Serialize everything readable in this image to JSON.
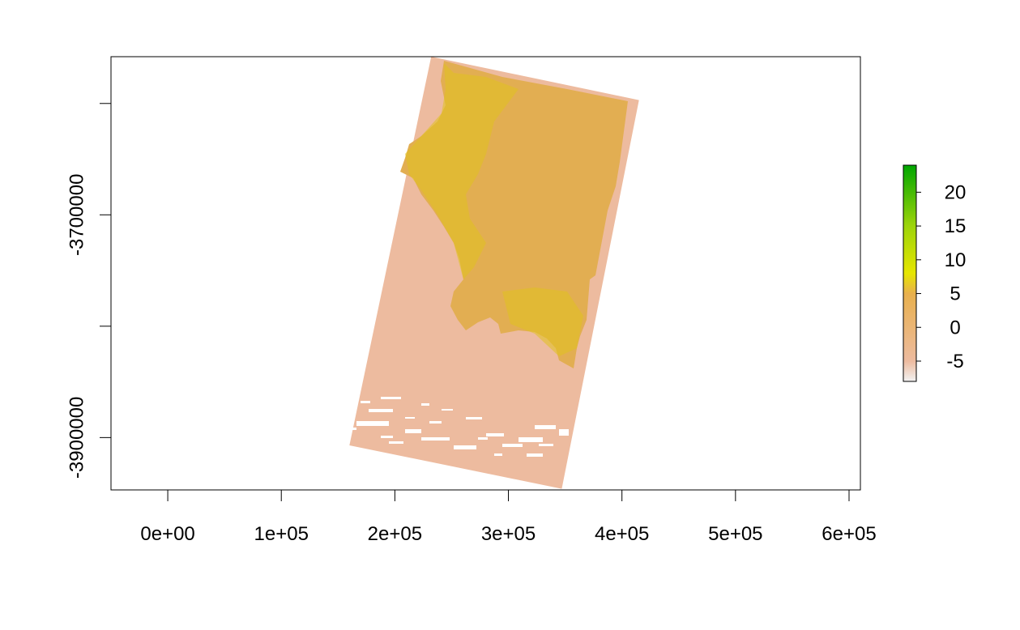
{
  "chart_data": {
    "type": "heatmap",
    "title": "",
    "xlabel": "",
    "ylabel": "",
    "xlim": [
      -50000,
      610000
    ],
    "ylim": [
      -3947000,
      -3558000
    ],
    "x_ticks": [
      {
        "value": 0,
        "label": "0e+00"
      },
      {
        "value": 100000,
        "label": "1e+05"
      },
      {
        "value": 200000,
        "label": "2e+05"
      },
      {
        "value": 300000,
        "label": "3e+05"
      },
      {
        "value": 400000,
        "label": "4e+05"
      },
      {
        "value": 500000,
        "label": "5e+05"
      },
      {
        "value": 600000,
        "label": "6e+05"
      }
    ],
    "y_ticks": [
      {
        "value": -3600000,
        "label": ""
      },
      {
        "value": -3700000,
        "label": "-3700000"
      },
      {
        "value": -3800000,
        "label": ""
      },
      {
        "value": -3900000,
        "label": "-3900000"
      }
    ],
    "legend": {
      "placement": "right",
      "range": [
        -8,
        24
      ],
      "ticks": [
        {
          "value": -5,
          "label": "-5"
        },
        {
          "value": 0,
          "label": "0"
        },
        {
          "value": 5,
          "label": "5"
        },
        {
          "value": 10,
          "label": "10"
        },
        {
          "value": 15,
          "label": "15"
        },
        {
          "value": 20,
          "label": "20"
        }
      ],
      "colors": [
        "#f2f2f2",
        "#edbb9f",
        "#e8b04d",
        "#e6e600",
        "#9dd40a",
        "#00a600"
      ]
    },
    "raster": {
      "scene_corners": [
        {
          "x": 232000,
          "y": -3558000
        },
        {
          "x": 415000,
          "y": -3597000
        },
        {
          "x": 347000,
          "y": -3946000
        },
        {
          "x": 160000,
          "y": -3907000
        }
      ],
      "sea_color": "#edbb9f",
      "land_color": "#e2ae52",
      "land_highlight_color": "#e0c21e",
      "no_data_color": "#ffffff",
      "pixel_max_color": "#00a600"
    }
  }
}
